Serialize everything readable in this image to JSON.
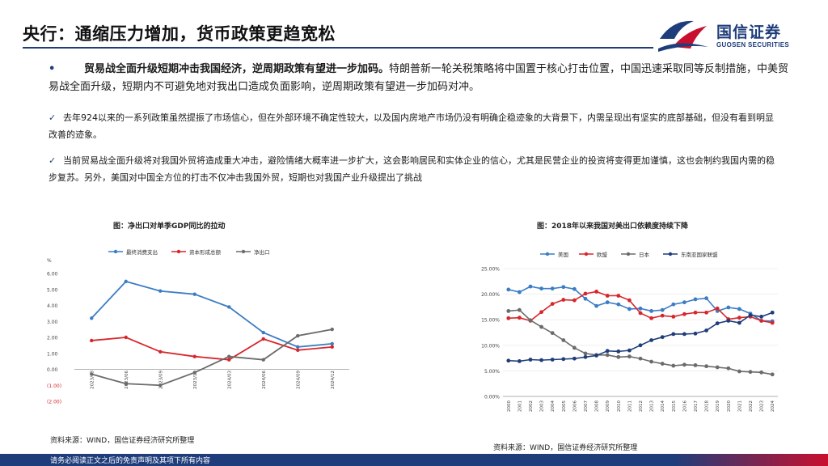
{
  "header": {
    "title": "央行：通缩压力增加，货币政策更趋宽松",
    "logo_cn": "国信证券",
    "logo_en": "GUOSEN SECURITIES"
  },
  "bullet": {
    "marker": "•",
    "bold": "贸易战全面升级短期冲击我国经济，逆周期政策有望进一步加码。",
    "text": "特朗普新一轮关税策略将中国置于核心打击位置，中国迅速采取同等反制措施，中美贸易战全面升级，短期内不可避免地对我出口造成负面影响，逆周期政策有望进一步加码对冲。"
  },
  "checks": [
    {
      "marker": "✓",
      "text": "去年924以来的一系列政策虽然提振了市场信心，但在外部环境不确定性较大，以及国内房地产市场仍没有明确企稳迹象的大背景下，内需呈现出有坚实的底部基础，但没有看到明显改善的迹象。"
    },
    {
      "marker": "✓",
      "text": "当前贸易战全面升级将对我国外贸将造成重大冲击，避险情绪大概率进一步扩大，这会影响居民和实体企业的信心，尤其是民营企业的投资将变得更加谨慎，这也会制约我国内需的稳步复苏。另外，美国对中国全方位的打击不仅冲击我国外贸，短期也对我国产业升级提出了挑战"
    }
  ],
  "chart_data": [
    {
      "type": "line",
      "title": "图：净出口对单季GDP同比的拉动",
      "ylabel": "%",
      "ylim": [
        -2,
        6
      ],
      "yticks": [
        "6.00",
        "5.00",
        "4.00",
        "3.00",
        "2.00",
        "1.00",
        "0.00",
        "(1.00)",
        "(2.00)"
      ],
      "x": [
        "2023/03",
        "2023/06",
        "2023/09",
        "2023/12",
        "2024/03",
        "2024/06",
        "2024/09",
        "2024/12"
      ],
      "legend_position": "top",
      "series": [
        {
          "name": "最终消费支出",
          "color": "#3b7dc4",
          "values": [
            3.2,
            5.5,
            4.9,
            4.7,
            3.9,
            2.3,
            1.4,
            1.6
          ]
        },
        {
          "name": "资本形成总额",
          "color": "#d7262b",
          "values": [
            1.8,
            2.0,
            1.1,
            0.8,
            0.6,
            1.9,
            1.2,
            1.4
          ]
        },
        {
          "name": "净出口",
          "color": "#6b6b6b",
          "values": [
            -0.3,
            -0.9,
            -1.0,
            -0.2,
            0.8,
            0.6,
            2.1,
            2.5
          ]
        }
      ]
    },
    {
      "type": "line",
      "title": "图：2018年以来我国对美出口依赖度持续下降",
      "ylim": [
        0,
        25
      ],
      "yticks": [
        "25.00%",
        "20.00%",
        "15.00%",
        "10.00%",
        "5.00%",
        "0.00%"
      ],
      "x": [
        "2000",
        "2001",
        "2002",
        "2003",
        "2004",
        "2005",
        "2006",
        "2007",
        "2008",
        "2009",
        "2010",
        "2011",
        "2012",
        "2013",
        "2014",
        "2015",
        "2016",
        "2017",
        "2018",
        "2019",
        "2020",
        "2021",
        "2022",
        "2023",
        "2024"
      ],
      "legend_position": "top",
      "series": [
        {
          "name": "美国",
          "color": "#3b7dc4",
          "values": [
            20.9,
            20.4,
            21.5,
            21.1,
            21.1,
            21.4,
            21.0,
            19.1,
            17.7,
            18.4,
            18.0,
            17.1,
            17.2,
            16.7,
            16.9,
            18.0,
            18.4,
            19.0,
            19.2,
            16.7,
            17.4,
            17.1,
            16.2,
            14.8,
            14.7
          ]
        },
        {
          "name": "欧盟",
          "color": "#d7262b",
          "values": [
            15.3,
            15.4,
            14.8,
            16.5,
            18.1,
            18.9,
            18.8,
            20.1,
            20.5,
            19.7,
            19.7,
            18.8,
            16.3,
            15.3,
            15.8,
            15.6,
            16.1,
            16.4,
            16.4,
            17.2,
            15.1,
            15.4,
            15.6,
            14.8,
            14.4
          ]
        },
        {
          "name": "日本",
          "color": "#6b6b6b",
          "values": [
            16.7,
            16.9,
            14.9,
            13.6,
            12.4,
            11.0,
            9.5,
            8.4,
            8.1,
            8.1,
            7.7,
            7.8,
            7.4,
            6.8,
            6.4,
            6.0,
            6.2,
            6.1,
            5.9,
            5.7,
            5.5,
            4.9,
            4.8,
            4.7,
            4.3
          ]
        },
        {
          "name": "东南亚国家联盟",
          "color": "#1f3d7a",
          "values": [
            7.0,
            6.9,
            7.2,
            7.1,
            7.2,
            7.3,
            7.4,
            7.7,
            8.0,
            8.9,
            8.8,
            9.0,
            10.0,
            11.0,
            11.6,
            12.2,
            12.2,
            12.3,
            12.9,
            14.3,
            14.8,
            14.4,
            15.9,
            15.6,
            16.4
          ]
        }
      ]
    }
  ],
  "sources": [
    "资料来源：WIND，国信证券经济研究所整理",
    "资料来源：WIND，国信证券经济研究所整理"
  ],
  "footer": {
    "disclaimer": "请务必阅读正文之后的免责声明及其项下所有内容"
  },
  "colors": {
    "brand": "#1f3d7a",
    "accent": "#c8102e"
  }
}
